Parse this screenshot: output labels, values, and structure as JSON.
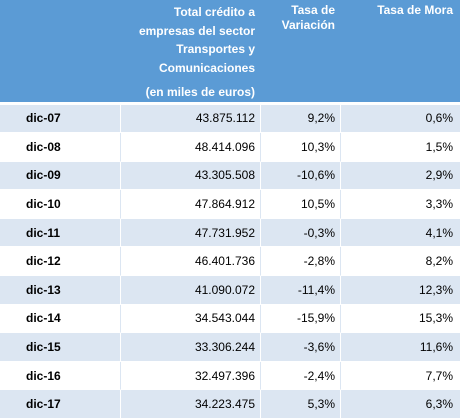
{
  "header": {
    "col1_line1": "Total crédito a",
    "col1_line2": "empresas del sector",
    "col1_line3": "Transportes y Comunicaciones",
    "col1_line4": "(en miles de euros)",
    "col2_line1": "Tasa de",
    "col2_line2": "Variación",
    "col3": "Tasa de Mora"
  },
  "rows": [
    {
      "label": "dic-07",
      "total": "43.875.112",
      "variacion": "9,2%",
      "mora": "0,6%"
    },
    {
      "label": "dic-08",
      "total": "48.414.096",
      "variacion": "10,3%",
      "mora": "1,5%"
    },
    {
      "label": "dic-09",
      "total": "43.305.508",
      "variacion": "-10,6%",
      "mora": "2,9%"
    },
    {
      "label": "dic-10",
      "total": "47.864.912",
      "variacion": "10,5%",
      "mora": "3,3%"
    },
    {
      "label": "dic-11",
      "total": "47.731.952",
      "variacion": "-0,3%",
      "mora": "4,1%"
    },
    {
      "label": "dic-12",
      "total": "46.401.736",
      "variacion": "-2,8%",
      "mora": "8,2%"
    },
    {
      "label": "dic-13",
      "total": "41.090.072",
      "variacion": "-11,4%",
      "mora": "12,3%"
    },
    {
      "label": "dic-14",
      "total": "34.543.044",
      "variacion": "-15,9%",
      "mora": "15,3%"
    },
    {
      "label": "dic-15",
      "total": "33.306.244",
      "variacion": "-3,6%",
      "mora": "11,6%"
    },
    {
      "label": "dic-16",
      "total": "32.497.396",
      "variacion": "-2,4%",
      "mora": "7,7%"
    },
    {
      "label": "dic-17",
      "total": "34.223.475",
      "variacion": "5,3%",
      "mora": "6,3%"
    }
  ],
  "colors": {
    "header_bg": "#5b9bd5",
    "band": "#dce6f2"
  }
}
